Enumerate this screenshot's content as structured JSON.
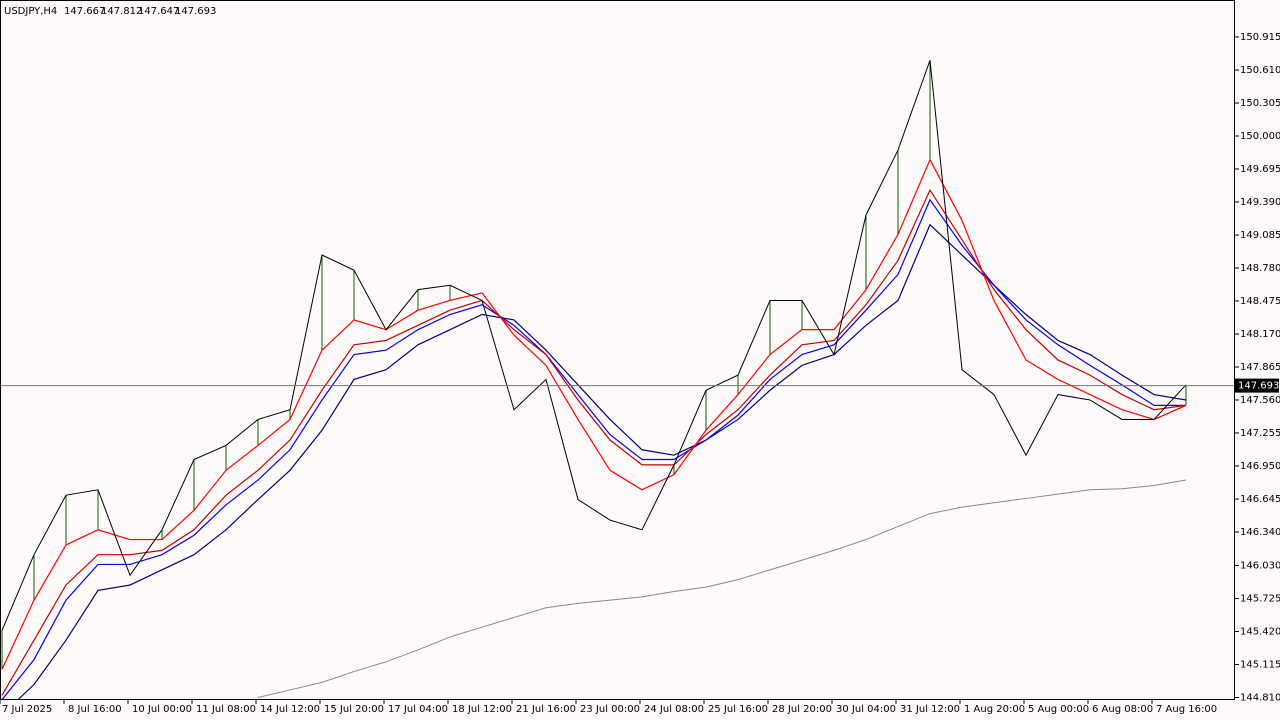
{
  "chart_data": {
    "type": "line",
    "symbol": "USDJPY,H4",
    "ohlc": [
      147.667,
      147.812,
      147.647,
      147.693
    ],
    "categories": [
      "7 Jul 2025",
      null,
      "8 Jul 16:00",
      null,
      "10 Jul 00:00",
      null,
      "11 Jul 08:00",
      null,
      "14 Jul 12:00",
      null,
      "15 Jul 20:00",
      null,
      "17 Jul 04:00",
      null,
      "18 Jul 12:00",
      null,
      "21 Jul 16:00",
      null,
      "23 Jul 00:00",
      null,
      "24 Jul 08:00",
      null,
      "25 Jul 16:00",
      null,
      "28 Jul 20:00",
      null,
      "30 Jul 04:00",
      null,
      "31 Jul 12:00",
      null,
      "1 Aug 20:00",
      null,
      "5 Aug 00:00",
      null,
      "6 Aug 08:00",
      null,
      "7 Aug 16:00",
      null
    ],
    "series": [
      {
        "color": "#000000",
        "values": [
          145.43,
          146.13,
          146.68,
          146.73,
          145.94,
          146.36,
          147.01,
          147.14,
          147.38,
          147.47,
          148.9,
          148.76,
          148.21,
          148.58,
          148.62,
          148.48,
          147.47,
          147.75,
          146.64,
          146.45,
          146.36,
          146.96,
          147.65,
          147.79,
          148.48,
          148.48,
          147.98,
          149.27,
          149.87,
          150.7,
          147.84,
          147.61,
          147.05,
          147.61,
          147.56,
          147.38,
          147.38,
          147.7
        ]
      },
      {
        "color": "#ff0000",
        "values": [
          145.07,
          145.71,
          146.22,
          146.36,
          146.27,
          146.27,
          146.54,
          146.91,
          147.14,
          147.38,
          148.02,
          148.3,
          148.21,
          148.39,
          148.48,
          148.55,
          148.16,
          147.88,
          147.38,
          146.91,
          146.73,
          146.87,
          147.28,
          147.61,
          147.98,
          148.21,
          148.21,
          148.58,
          149.09,
          149.78,
          149.22,
          148.48,
          147.93,
          147.75,
          147.61,
          147.47,
          147.38,
          147.51
        ]
      },
      {
        "color": "#c00000",
        "values": [
          144.83,
          145.34,
          145.85,
          146.13,
          146.13,
          146.17,
          146.36,
          146.68,
          146.91,
          147.19,
          147.65,
          148.07,
          148.11,
          148.25,
          148.39,
          148.48,
          148.21,
          147.98,
          147.56,
          147.19,
          146.96,
          146.96,
          147.24,
          147.47,
          147.79,
          148.07,
          148.11,
          148.44,
          148.85,
          149.5,
          149.04,
          148.58,
          148.21,
          147.93,
          147.79,
          147.61,
          147.47,
          147.51
        ]
      },
      {
        "color": "#0000ff",
        "values": [
          144.79,
          145.16,
          145.71,
          146.04,
          146.04,
          146.13,
          146.31,
          146.59,
          146.82,
          147.1,
          147.56,
          147.98,
          148.02,
          148.21,
          148.35,
          148.44,
          148.25,
          147.98,
          147.61,
          147.24,
          147.01,
          147.01,
          147.19,
          147.42,
          147.75,
          147.98,
          148.07,
          148.39,
          148.72,
          149.41,
          148.99,
          148.62,
          148.3,
          148.07,
          147.88,
          147.7,
          147.51,
          147.51
        ]
      },
      {
        "color": "#000080",
        "values": [
          144.65,
          144.93,
          145.34,
          145.8,
          145.85,
          145.99,
          146.13,
          146.36,
          146.64,
          146.91,
          147.28,
          147.75,
          147.84,
          148.07,
          148.21,
          148.35,
          148.3,
          148.02,
          147.7,
          147.38,
          147.1,
          147.05,
          147.19,
          147.38,
          147.65,
          147.88,
          147.98,
          148.25,
          148.48,
          149.18,
          148.9,
          148.62,
          148.35,
          148.11,
          147.98,
          147.79,
          147.61,
          147.56
        ]
      },
      {
        "color": "#888888",
        "values": [
          null,
          null,
          null,
          null,
          null,
          null,
          null,
          null,
          144.81,
          144.88,
          144.95,
          145.05,
          145.14,
          145.25,
          145.37,
          145.46,
          145.55,
          145.64,
          145.68,
          145.71,
          145.74,
          145.79,
          145.83,
          145.9,
          145.99,
          146.08,
          146.17,
          146.27,
          146.39,
          146.51,
          146.57,
          146.61,
          146.65,
          146.69,
          146.73,
          146.74,
          146.77,
          146.82
        ]
      }
    ],
    "hatch_color": "#006400",
    "ylim": [
      144.787,
      151.257
    ],
    "yticks": [
      150.915,
      {
        "value": 150.61,
        "label": "150.610"
      },
      150.305,
      {
        "value": 150,
        "label": "150.000"
      },
      149.695,
      {
        "value": 149.39,
        "label": "149.390"
      },
      149.085,
      {
        "value": 148.78,
        "label": "148.780"
      },
      148.475,
      {
        "value": 148.17,
        "label": "148.170"
      },
      147.865,
      {
        "value": 147.56,
        "label": "147.560"
      },
      147.255,
      {
        "value": 146.95,
        "label": "146.950"
      },
      146.645,
      {
        "value": 146.34,
        "label": "146.340"
      },
      {
        "value": 146.03,
        "label": "146.030"
      },
      145.725,
      {
        "value": 145.42,
        "label": "145.420"
      },
      145.115,
      {
        "value": 144.81,
        "label": "144.810"
      }
    ],
    "grid": false
  }
}
